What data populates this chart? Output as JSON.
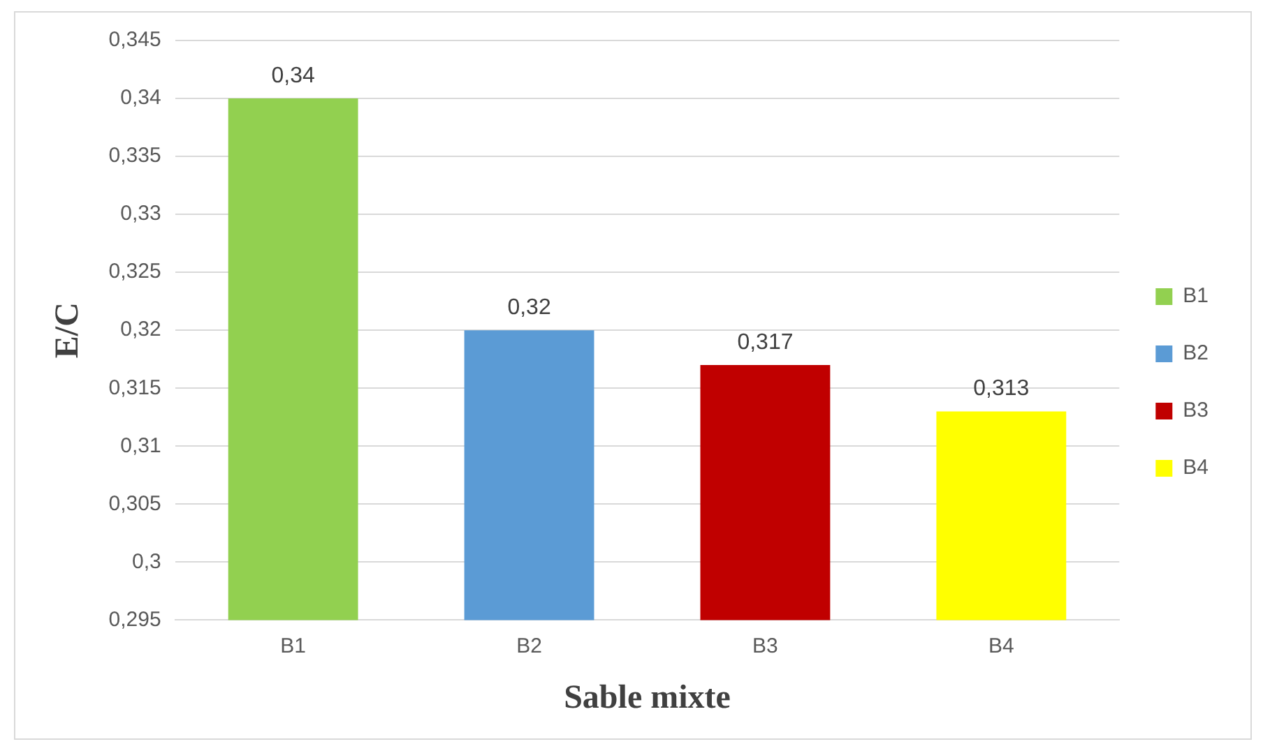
{
  "chart_data": {
    "type": "bar",
    "xlabel": "Sable mixte",
    "ylabel": "E/C",
    "categories": [
      "B1",
      "B2",
      "B3",
      "B4"
    ],
    "series": [
      {
        "name": "B1",
        "color": "#92d050",
        "values": [
          0.34,
          null,
          null,
          null
        ],
        "value_labels": [
          "0,34",
          null,
          null,
          null
        ]
      },
      {
        "name": "B2",
        "color": "#5b9bd5",
        "values": [
          null,
          0.32,
          null,
          null
        ],
        "value_labels": [
          null,
          "0,32",
          null,
          null
        ]
      },
      {
        "name": "B3",
        "color": "#c00000",
        "values": [
          null,
          null,
          0.317,
          null
        ],
        "value_labels": [
          null,
          null,
          "0,317",
          null
        ]
      },
      {
        "name": "B4",
        "color": "#ffff00",
        "values": [
          null,
          null,
          null,
          0.313
        ],
        "value_labels": [
          null,
          null,
          null,
          "0,313"
        ]
      }
    ],
    "ylim": [
      0.295,
      0.345
    ],
    "yticks": [
      {
        "value": 0.295,
        "label": "0,295"
      },
      {
        "value": 0.3,
        "label": "0,3"
      },
      {
        "value": 0.305,
        "label": "0,305"
      },
      {
        "value": 0.31,
        "label": "0,31"
      },
      {
        "value": 0.315,
        "label": "0,315"
      },
      {
        "value": 0.32,
        "label": "0,32"
      },
      {
        "value": 0.325,
        "label": "0,325"
      },
      {
        "value": 0.33,
        "label": "0,33"
      },
      {
        "value": 0.335,
        "label": "0,335"
      },
      {
        "value": 0.34,
        "label": "0,34"
      },
      {
        "value": 0.345,
        "label": "0,345"
      }
    ],
    "grid": "y",
    "legend": "right"
  }
}
